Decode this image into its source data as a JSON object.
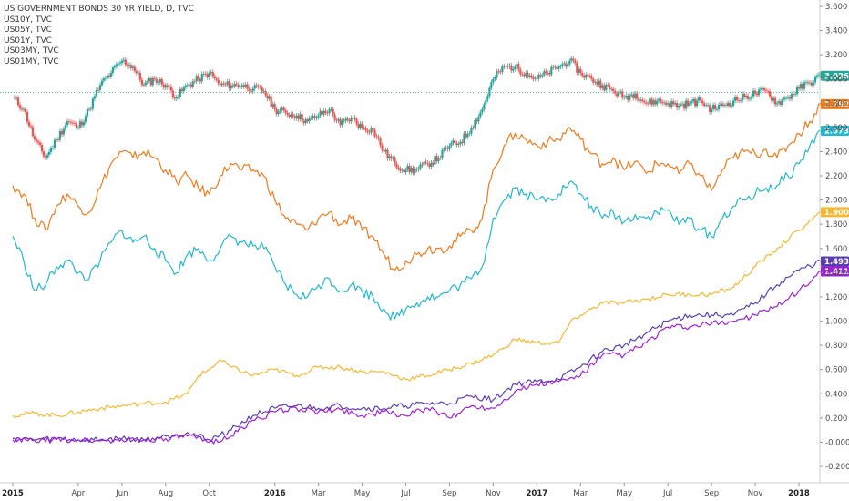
{
  "legend": [
    "US GOVERNMENT BONDS 30 YR YIELD, D, TVC",
    "US10Y, TVC",
    "US05Y, TVC",
    "US01Y, TVC",
    "US03MY, TVC",
    "US01MY, TVC"
  ],
  "chart_data": {
    "type": "line",
    "title": "US GOVERNMENT BONDS 30 YR YIELD, D, TVC",
    "xlabel": "",
    "ylabel": "",
    "ylim": [
      -0.3,
      3.65
    ],
    "y_ticks": [
      "3.600",
      "3.400",
      "3.200",
      "3.000",
      "2.800",
      "2.600",
      "2.400",
      "2.200",
      "2.000",
      "1.800",
      "1.600",
      "1.400",
      "1.200",
      "1.000",
      "0.800",
      "0.600",
      "0.400",
      "0.200",
      "-0.000",
      "-0.200"
    ],
    "x_ticks": [
      {
        "label": "2015",
        "t": 0,
        "bold": true
      },
      {
        "label": "Apr",
        "t": 3
      },
      {
        "label": "Jun",
        "t": 5
      },
      {
        "label": "Aug",
        "t": 7
      },
      {
        "label": "Oct",
        "t": 9
      },
      {
        "label": "2016",
        "t": 12,
        "bold": true
      },
      {
        "label": "Mar",
        "t": 14
      },
      {
        "label": "May",
        "t": 16
      },
      {
        "label": "Jul",
        "t": 18
      },
      {
        "label": "Sep",
        "t": 20
      },
      {
        "label": "Nov",
        "t": 22
      },
      {
        "label": "2017",
        "t": 24,
        "bold": true
      },
      {
        "label": "Mar",
        "t": 26
      },
      {
        "label": "May",
        "t": 28
      },
      {
        "label": "Jul",
        "t": 30
      },
      {
        "label": "Sep",
        "t": 32
      },
      {
        "label": "Nov",
        "t": 34
      },
      {
        "label": "2018",
        "t": 36,
        "bold": true
      }
    ],
    "x_unit": "months since Jan 2015",
    "reference_line": 2.89,
    "series": [
      {
        "name": "US GOVERNMENT BONDS 30 YR YIELD",
        "style": "candlestick",
        "up_color": "#26a69a",
        "down_color": "#ef5350",
        "last_value": "3.026",
        "badge_color": "#26a69a",
        "x": [
          0,
          0.5,
          1,
          1.5,
          2,
          2.5,
          3,
          3.5,
          4,
          4.5,
          5,
          5.5,
          6,
          6.5,
          7,
          7.5,
          8,
          8.5,
          9,
          9.5,
          10,
          10.5,
          11,
          11.5,
          12,
          12.5,
          13,
          13.5,
          14,
          14.5,
          15,
          15.5,
          16,
          16.5,
          17,
          17.5,
          18,
          18.5,
          19,
          19.5,
          20,
          20.5,
          21,
          21.5,
          22,
          22.5,
          23,
          23.5,
          24,
          24.5,
          25,
          25.5,
          26,
          26.5,
          27,
          27.5,
          28,
          28.5,
          29,
          29.5,
          30,
          30.5,
          31,
          31.5,
          32,
          32.5,
          33,
          33.5,
          34,
          34.5,
          35,
          35.5,
          36,
          36.5,
          37
        ],
        "values": [
          2.85,
          2.75,
          2.5,
          2.35,
          2.5,
          2.65,
          2.6,
          2.75,
          2.95,
          3.05,
          3.15,
          3.1,
          2.95,
          3.0,
          2.95,
          2.85,
          2.95,
          3.0,
          3.05,
          2.95,
          2.95,
          2.95,
          2.92,
          2.9,
          2.75,
          2.72,
          2.7,
          2.65,
          2.7,
          2.75,
          2.62,
          2.68,
          2.6,
          2.58,
          2.4,
          2.3,
          2.25,
          2.25,
          2.3,
          2.35,
          2.45,
          2.48,
          2.6,
          2.75,
          3.0,
          3.1,
          3.1,
          3.05,
          3.0,
          3.05,
          3.1,
          3.15,
          3.05,
          3.0,
          2.95,
          2.9,
          2.85,
          2.88,
          2.8,
          2.82,
          2.8,
          2.78,
          2.8,
          2.82,
          2.75,
          2.78,
          2.82,
          2.85,
          2.88,
          2.9,
          2.8,
          2.85,
          2.92,
          2.97,
          3.026
        ]
      },
      {
        "name": "US10Y",
        "color": "#ef7a1a",
        "last_value": "2.792",
        "x": [
          0,
          0.5,
          1,
          1.5,
          2,
          2.5,
          3,
          3.5,
          4,
          4.5,
          5,
          5.5,
          6,
          6.5,
          7,
          7.5,
          8,
          8.5,
          9,
          9.5,
          10,
          10.5,
          11,
          11.5,
          12,
          12.5,
          13,
          13.5,
          14,
          14.5,
          15,
          15.5,
          16,
          16.5,
          17,
          17.5,
          18,
          18.5,
          19,
          19.5,
          20,
          20.5,
          21,
          21.5,
          22,
          22.5,
          23,
          23.5,
          24,
          24.5,
          25,
          25.5,
          26,
          26.5,
          27,
          27.5,
          28,
          28.5,
          29,
          29.5,
          30,
          30.5,
          31,
          31.5,
          32,
          32.5,
          33,
          33.5,
          34,
          34.5,
          35,
          35.5,
          36,
          36.5,
          37
        ],
        "values": [
          2.12,
          2.05,
          1.85,
          1.75,
          1.95,
          2.05,
          1.95,
          1.9,
          2.1,
          2.3,
          2.4,
          2.35,
          2.4,
          2.35,
          2.25,
          2.15,
          2.2,
          2.1,
          2.05,
          2.2,
          2.3,
          2.25,
          2.25,
          2.2,
          2.0,
          1.85,
          1.8,
          1.75,
          1.85,
          1.9,
          1.8,
          1.85,
          1.75,
          1.7,
          1.55,
          1.42,
          1.5,
          1.55,
          1.6,
          1.6,
          1.62,
          1.7,
          1.75,
          1.85,
          2.25,
          2.45,
          2.55,
          2.5,
          2.45,
          2.48,
          2.5,
          2.6,
          2.5,
          2.38,
          2.3,
          2.35,
          2.25,
          2.32,
          2.22,
          2.3,
          2.3,
          2.22,
          2.3,
          2.2,
          2.08,
          2.25,
          2.35,
          2.4,
          2.38,
          2.42,
          2.35,
          2.45,
          2.55,
          2.65,
          2.792
        ]
      },
      {
        "name": "US05Y",
        "color": "#22b8cf",
        "last_value": "2.573",
        "x": [
          0,
          0.5,
          1,
          1.5,
          2,
          2.5,
          3,
          3.5,
          4,
          4.5,
          5,
          5.5,
          6,
          6.5,
          7,
          7.5,
          8,
          8.5,
          9,
          9.5,
          10,
          10.5,
          11,
          11.5,
          12,
          12.5,
          13,
          13.5,
          14,
          14.5,
          15,
          15.5,
          16,
          16.5,
          17,
          17.5,
          18,
          18.5,
          19,
          19.5,
          20,
          20.5,
          21,
          21.5,
          22,
          22.5,
          23,
          23.5,
          24,
          24.5,
          25,
          25.5,
          26,
          26.5,
          27,
          27.5,
          28,
          28.5,
          29,
          29.5,
          30,
          30.5,
          31,
          31.5,
          32,
          32.5,
          33,
          33.5,
          34,
          34.5,
          35,
          35.5,
          36,
          36.5,
          37
        ],
        "values": [
          1.7,
          1.5,
          1.25,
          1.3,
          1.45,
          1.5,
          1.4,
          1.35,
          1.5,
          1.65,
          1.75,
          1.65,
          1.7,
          1.6,
          1.5,
          1.4,
          1.55,
          1.6,
          1.5,
          1.6,
          1.7,
          1.65,
          1.62,
          1.6,
          1.45,
          1.3,
          1.22,
          1.2,
          1.3,
          1.35,
          1.25,
          1.3,
          1.25,
          1.2,
          1.1,
          1.02,
          1.1,
          1.15,
          1.2,
          1.2,
          1.25,
          1.3,
          1.35,
          1.45,
          1.85,
          2.0,
          2.1,
          2.05,
          2.0,
          2.02,
          2.05,
          2.15,
          2.05,
          1.95,
          1.85,
          1.9,
          1.82,
          1.88,
          1.85,
          1.9,
          1.92,
          1.8,
          1.85,
          1.75,
          1.7,
          1.85,
          1.95,
          2.0,
          2.05,
          2.1,
          2.12,
          2.2,
          2.3,
          2.45,
          2.573
        ]
      },
      {
        "name": "US01Y",
        "color": "#f5b82e",
        "last_value": "1.900",
        "x": [
          0,
          1,
          2,
          3,
          4,
          5,
          6,
          7,
          8,
          8.5,
          9,
          9.5,
          10,
          11,
          12,
          13,
          14,
          15,
          16,
          17,
          18,
          19,
          20,
          21,
          22,
          22.5,
          23,
          24,
          25,
          25.5,
          26,
          27,
          28,
          29,
          30,
          31,
          32,
          33,
          34,
          35,
          36,
          37
        ],
        "values": [
          0.22,
          0.24,
          0.22,
          0.25,
          0.28,
          0.3,
          0.32,
          0.33,
          0.4,
          0.55,
          0.6,
          0.68,
          0.62,
          0.55,
          0.6,
          0.55,
          0.62,
          0.62,
          0.58,
          0.58,
          0.52,
          0.55,
          0.6,
          0.65,
          0.72,
          0.78,
          0.85,
          0.82,
          0.82,
          0.98,
          1.05,
          1.15,
          1.15,
          1.18,
          1.22,
          1.22,
          1.22,
          1.28,
          1.45,
          1.6,
          1.75,
          1.9
        ]
      },
      {
        "name": "US03MY",
        "color": "#5b3fb0",
        "last_value": "1.493",
        "x": [
          0,
          1,
          2,
          3,
          4,
          5,
          6,
          7,
          8,
          9,
          10,
          11,
          12,
          13,
          14,
          15,
          16,
          17,
          18,
          19,
          20,
          21,
          22,
          23,
          24,
          25,
          26,
          27,
          28,
          29,
          30,
          31,
          32,
          33,
          34,
          35,
          36,
          37
        ],
        "values": [
          0.03,
          0.02,
          0.03,
          0.02,
          0.02,
          0.03,
          0.02,
          0.05,
          0.08,
          0.02,
          0.1,
          0.22,
          0.28,
          0.3,
          0.28,
          0.3,
          0.28,
          0.28,
          0.3,
          0.32,
          0.32,
          0.38,
          0.35,
          0.48,
          0.5,
          0.52,
          0.62,
          0.75,
          0.8,
          0.9,
          1.0,
          1.05,
          1.05,
          1.05,
          1.15,
          1.3,
          1.42,
          1.493
        ]
      },
      {
        "name": "US01MY",
        "color": "#a020d8",
        "last_value": "1.411",
        "x": [
          0,
          1,
          2,
          3,
          4,
          5,
          6,
          7,
          8,
          9,
          10,
          11,
          12,
          13,
          14,
          15,
          16,
          17,
          18,
          19,
          20,
          21,
          22,
          23,
          24,
          25,
          26,
          27,
          28,
          29,
          30,
          31,
          32,
          33,
          34,
          35,
          36,
          37
        ],
        "values": [
          0.02,
          0.01,
          0.02,
          0.02,
          0.01,
          0.02,
          0.02,
          0.03,
          0.05,
          0.0,
          0.05,
          0.18,
          0.25,
          0.28,
          0.25,
          0.27,
          0.22,
          0.25,
          0.22,
          0.28,
          0.2,
          0.3,
          0.28,
          0.42,
          0.48,
          0.5,
          0.55,
          0.72,
          0.72,
          0.82,
          0.95,
          0.95,
          0.98,
          1.0,
          1.05,
          1.12,
          1.25,
          1.411
        ]
      }
    ]
  }
}
